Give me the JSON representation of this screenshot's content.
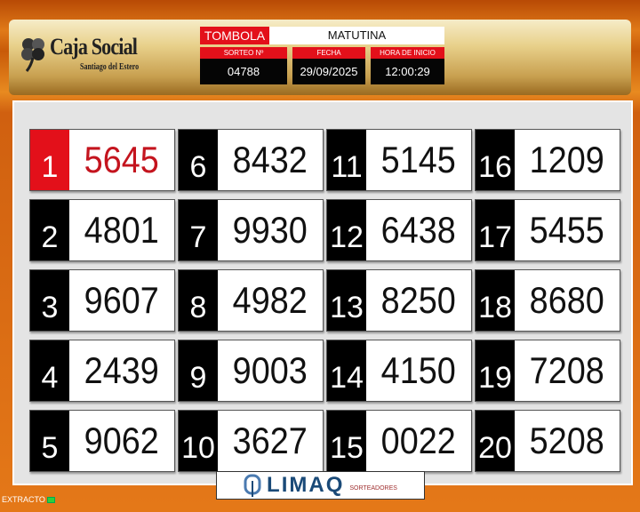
{
  "header": {
    "logo": {
      "title": "Caja Social",
      "subtitle": "Santiago del Estero"
    },
    "game_label": "TOMBOLA",
    "session": "MATUTINA",
    "fields": [
      {
        "label": "SORTEO Nº",
        "value": "04788"
      },
      {
        "label": "FECHA",
        "value": "29/09/2025"
      },
      {
        "label": "HORA DE INICIO",
        "value": "12:00:29"
      }
    ]
  },
  "results": [
    {
      "pos": "1",
      "num": "5645"
    },
    {
      "pos": "2",
      "num": "4801"
    },
    {
      "pos": "3",
      "num": "9607"
    },
    {
      "pos": "4",
      "num": "2439"
    },
    {
      "pos": "5",
      "num": "9062"
    },
    {
      "pos": "6",
      "num": "8432"
    },
    {
      "pos": "7",
      "num": "9930"
    },
    {
      "pos": "8",
      "num": "4982"
    },
    {
      "pos": "9",
      "num": "9003"
    },
    {
      "pos": "10",
      "num": "3627"
    },
    {
      "pos": "11",
      "num": "5145"
    },
    {
      "pos": "12",
      "num": "6438"
    },
    {
      "pos": "13",
      "num": "8250"
    },
    {
      "pos": "14",
      "num": "4150"
    },
    {
      "pos": "15",
      "num": "0022"
    },
    {
      "pos": "16",
      "num": "1209"
    },
    {
      "pos": "17",
      "num": "5455"
    },
    {
      "pos": "18",
      "num": "8680"
    },
    {
      "pos": "19",
      "num": "7208"
    },
    {
      "pos": "20",
      "num": "5208"
    }
  ],
  "sponsor": {
    "brand": "LIMAQ",
    "tagline": "SORTEADORES"
  },
  "status": {
    "label": "EXTRACTO"
  },
  "colors": {
    "accent_red": "#e3101a",
    "first_number": "#c4141e",
    "frame_orange": "#e07a18"
  }
}
